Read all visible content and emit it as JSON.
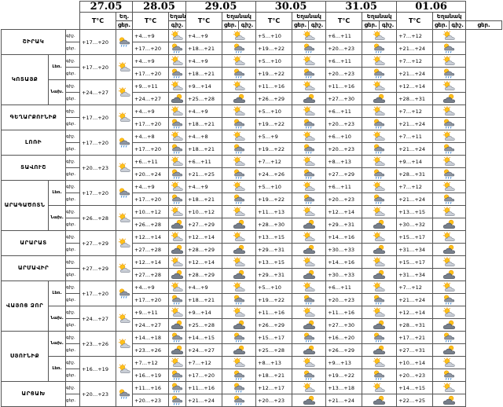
{
  "dates": [
    "27.05",
    "28.05",
    "29.05",
    "30.05",
    "31.05",
    "01.06"
  ],
  "header": {
    "temp_label": "T°C",
    "weather_label": "Եղանակ",
    "weather_label_short": "Եղ.",
    "night_label": "գիշ.",
    "day_label": "ցեր."
  },
  "row_labels": [
    "գիշ.",
    "ցեր."
  ],
  "regions": [
    {
      "name": "ՇԻՐԱԿ",
      "sub": "",
      "rows": [
        {
          "t": [
            "+17…+20",
            "+4…+9",
            "+4…+9",
            "+5…+10",
            "+6…+11",
            "+7…+12"
          ],
          "i": [
            "rain",
            "sun-cloud",
            "sun-cloud",
            "sun-cloud",
            "sun-cloud",
            "sun-cloud"
          ]
        },
        {
          "t": [
            "",
            "+17…+20",
            "+18…+21",
            "+19…+22",
            "+20…+23",
            "+21…+24"
          ],
          "i": [
            "",
            "rain",
            "rain",
            "rain",
            "rain",
            "rain"
          ]
        }
      ]
    },
    {
      "name": "ԿՈՏԱՅՔ",
      "sub": "Լեռ.",
      "rows": [
        {
          "t": [
            "+17…+20",
            "+4…+9",
            "+4…+9",
            "+5…+10",
            "+6…+11",
            "+7…+12"
          ],
          "i": [
            "sun-cloud",
            "sun-cloud",
            "sun-cloud",
            "sun-cloud",
            "sun-cloud",
            "sun-cloud"
          ]
        },
        {
          "t": [
            "",
            "+17…+20",
            "+18…+21",
            "+19…+22",
            "+20…+23",
            "+21…+24"
          ],
          "i": [
            "",
            "rain",
            "rain",
            "rain",
            "rain",
            "rain"
          ]
        }
      ]
    },
    {
      "name": "",
      "sub": "Նախ.",
      "rows": [
        {
          "t": [
            "+24…+27",
            "+9…+11",
            "+9…+14",
            "+11…+16",
            "+11…+16",
            "+12…+14"
          ],
          "i": [
            "sun-cloud",
            "sun-cloud",
            "sun-cloud",
            "sun-cloud",
            "sun-cloud",
            "sun-cloud"
          ]
        },
        {
          "t": [
            "",
            "+24…+27",
            "+25…+28",
            "+26…+29",
            "+27…+30",
            "+28…+31"
          ],
          "i": [
            "",
            "cloud",
            "cloud",
            "cloud",
            "cloud",
            "cloud"
          ]
        }
      ]
    },
    {
      "name": "ԳԵՂԱՐՔՈՒՆԻՔ",
      "sub": "",
      "rows": [
        {
          "t": [
            "+17…+20",
            "+4…+9",
            "+4…+9",
            "+5…+10",
            "+6…+11",
            "+7…+12"
          ],
          "i": [
            "sun-cloud",
            "sun-cloud",
            "sun-cloud",
            "sun-cloud",
            "sun-cloud",
            "sun-cloud"
          ]
        },
        {
          "t": [
            "",
            "+17…+20",
            "+18…+21",
            "+19…+22",
            "+20…+23",
            "+21…+24"
          ],
          "i": [
            "",
            "rain",
            "rain",
            "rain",
            "rain",
            "rain"
          ]
        }
      ]
    },
    {
      "name": "ԼՈՌԻ",
      "sub": "",
      "rows": [
        {
          "t": [
            "+17…+20",
            "+4…+8",
            "+4…+8",
            "+5…+9",
            "+6…+10",
            "+7…+11"
          ],
          "i": [
            "rain",
            "sun-cloud",
            "sun-cloud",
            "sun-cloud",
            "sun-cloud",
            "sun-cloud"
          ]
        },
        {
          "t": [
            "",
            "+17…+20",
            "+18…+21",
            "+19…+22",
            "+20…+23",
            "+21…+24"
          ],
          "i": [
            "",
            "rain",
            "rain",
            "rain",
            "rain",
            "rain"
          ]
        }
      ]
    },
    {
      "name": "ՏԱՎՈՒՇ",
      "sub": "",
      "rows": [
        {
          "t": [
            "+20…+23",
            "+6…+11",
            "+6…+11",
            "+7…+12",
            "+8…+13",
            "+9…+14"
          ],
          "i": [
            "sun-cloud",
            "sun-cloud",
            "sun-cloud",
            "sun-cloud",
            "sun-cloud",
            "sun-cloud"
          ]
        },
        {
          "t": [
            "",
            "+20…+24",
            "+21…+25",
            "+24…+26",
            "+27…+29",
            "+28…+31"
          ],
          "i": [
            "",
            "rain",
            "rain",
            "rain",
            "rain",
            "rain"
          ]
        }
      ]
    },
    {
      "name": "ԱՐԱԳԱԾՈՏՆ",
      "sub": "Լեռ.",
      "rows": [
        {
          "t": [
            "+17…+20",
            "+4…+9",
            "+4…+9",
            "+5…+10",
            "+6…+11",
            "+7…+12"
          ],
          "i": [
            "rain",
            "sun-cloud",
            "sun-cloud",
            "sun-cloud",
            "sun-cloud",
            "sun-cloud"
          ]
        },
        {
          "t": [
            "",
            "+17…+20",
            "+18…+21",
            "+19…+22",
            "+20…+23",
            "+21…+24"
          ],
          "i": [
            "",
            "rain",
            "rain",
            "rain",
            "rain",
            "rain"
          ]
        }
      ]
    },
    {
      "name": "",
      "sub": "Նախ.",
      "rows": [
        {
          "t": [
            "+26…+28",
            "+10…+12",
            "+10…+12",
            "+11…+13",
            "+12…+14",
            "+13…+15"
          ],
          "i": [
            "sun-cloud",
            "sun-cloud",
            "sun-cloud",
            "sun-cloud",
            "sun-cloud",
            "sun-cloud"
          ]
        },
        {
          "t": [
            "",
            "+26…+28",
            "+27…+29",
            "+28…+30",
            "+29…+31",
            "+30…+32"
          ],
          "i": [
            "",
            "cloud",
            "cloud",
            "cloud",
            "cloud",
            "cloud"
          ]
        }
      ]
    },
    {
      "name": "ԱՐԱՐԱՏ",
      "sub": "",
      "rows": [
        {
          "t": [
            "+27…+29",
            "+12…+14",
            "+12…+14",
            "+13…+15",
            "+14…+16",
            "+15…+17"
          ],
          "i": [
            "sun-cloud",
            "sun-cloud",
            "sun-cloud",
            "sun-cloud",
            "sun-cloud",
            "sun-cloud"
          ]
        },
        {
          "t": [
            "",
            "+27…+28",
            "+28…+29",
            "+29…+31",
            "+30…+33",
            "+31…+34"
          ],
          "i": [
            "",
            "cloud",
            "cloud",
            "cloud",
            "cloud",
            "cloud"
          ]
        }
      ]
    },
    {
      "name": "ԱՐՄԱՎԻՐ",
      "sub": "",
      "rows": [
        {
          "t": [
            "+27…+29",
            "+12…+14",
            "+12…+14",
            "+13…+15",
            "+14…+16",
            "+15…+17"
          ],
          "i": [
            "sun-cloud",
            "sun-cloud",
            "sun-cloud",
            "sun-cloud",
            "sun-cloud",
            "sun-cloud"
          ]
        },
        {
          "t": [
            "",
            "+27…+28",
            "+28…+29",
            "+29…+31",
            "+30…+33",
            "+31…+34"
          ],
          "i": [
            "",
            "cloud",
            "cloud",
            "cloud",
            "cloud",
            "cloud"
          ]
        }
      ]
    },
    {
      "name": "ՎԱՅՈՑ ՁՈՐ",
      "sub": "Լեռ.",
      "rows": [
        {
          "t": [
            "+17…+20",
            "+4…+9",
            "+4…+9",
            "+5…+10",
            "+6…+11",
            "+7…+12"
          ],
          "i": [
            "rain",
            "sun-cloud",
            "sun-cloud",
            "sun-cloud",
            "sun-cloud",
            "sun-cloud"
          ]
        },
        {
          "t": [
            "",
            "+17…+20",
            "+18…+21",
            "+19…+22",
            "+20…+23",
            "+21…+24"
          ],
          "i": [
            "",
            "rain",
            "rain",
            "rain",
            "rain",
            "rain"
          ]
        }
      ]
    },
    {
      "name": "",
      "sub": "Նախ.",
      "rows": [
        {
          "t": [
            "+24…+27",
            "+9…+11",
            "+9…+14",
            "+11…+16",
            "+11…+16",
            "+12…+14"
          ],
          "i": [
            "sun-cloud",
            "sun-cloud",
            "sun-cloud",
            "sun-cloud",
            "sun-cloud",
            "sun-cloud"
          ]
        },
        {
          "t": [
            "",
            "+24…+27",
            "+25…+28",
            "+26…+29",
            "+27…+30",
            "+28…+31"
          ],
          "i": [
            "",
            "cloud",
            "cloud",
            "cloud",
            "cloud",
            "cloud"
          ]
        }
      ]
    },
    {
      "name": "ՍՅՈՒՆԻՔ",
      "sub": "Նախ.",
      "rows": [
        {
          "t": [
            "+23…+26",
            "+14…+18",
            "+14…+15",
            "+15…+17",
            "+16…+20",
            "+17…+21"
          ],
          "i": [
            "sun-cloud",
            "rain",
            "rain",
            "rain",
            "rain",
            "rain"
          ]
        },
        {
          "t": [
            "",
            "+23…+26",
            "+24…+27",
            "+25…+28",
            "+26…+29",
            "+27…+31"
          ],
          "i": [
            "",
            "cloud",
            "cloud",
            "cloud",
            "cloud",
            "cloud"
          ]
        }
      ]
    },
    {
      "name": "",
      "sub": "Լեռ.",
      "rows": [
        {
          "t": [
            "+16…+19",
            "+7…+12",
            "+7…+12",
            "+8…+13",
            "+9…+13",
            "+10…+14"
          ],
          "i": [
            "sun-cloud",
            "sun-cloud",
            "sun-cloud",
            "sun-cloud",
            "sun-cloud",
            "sun-cloud"
          ]
        },
        {
          "t": [
            "",
            "+16…+19",
            "+17…+20",
            "+18…+21",
            "+19…+22",
            "+20…+23"
          ],
          "i": [
            "",
            "rain",
            "rain",
            "rain",
            "rain",
            "rain"
          ]
        }
      ]
    },
    {
      "name": "ԱՐՑԱԽ",
      "sub": "",
      "rows": [
        {
          "t": [
            "+20…+23",
            "+11…+16",
            "+11…+16",
            "+12…+17",
            "+13…+18",
            "+14…+15"
          ],
          "i": [
            "rain",
            "rain",
            "rain",
            "sun-cloud",
            "sun-cloud",
            "sun-cloud"
          ]
        },
        {
          "t": [
            "",
            "+20…+23",
            "+21…+24",
            "+20…+23",
            "+21…+24",
            "+22…+25"
          ],
          "i": [
            "",
            "rain",
            "rain",
            "cloud",
            "cloud",
            "cloud"
          ]
        }
      ]
    }
  ]
}
